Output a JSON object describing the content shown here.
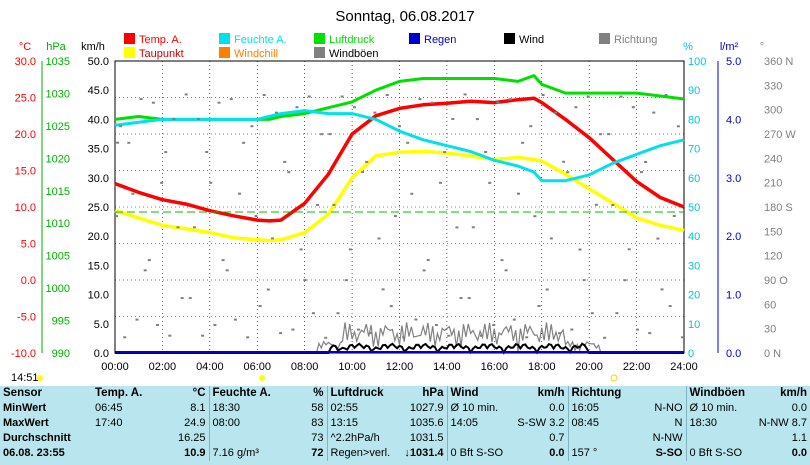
{
  "title": "Sonntag, 06.08.2017",
  "axis_units": {
    "temp": "°C",
    "pressure": "hPa",
    "wind": "km/h",
    "humidity": "%",
    "rain": "l/m²"
  },
  "legend": [
    {
      "label": "Temp. A.",
      "color": "#ff0000"
    },
    {
      "label": "Feuchte A.",
      "color": "#00e0ee"
    },
    {
      "label": "Luftdruck",
      "color": "#00e000"
    },
    {
      "label": "Regen",
      "color": "#0000cc"
    },
    {
      "label": "Wind",
      "color": "#000000"
    },
    {
      "label": "Richtung",
      "color": "#808080"
    },
    {
      "label": "Taupunkt",
      "color": "#ffff00"
    },
    {
      "label": "Windchill",
      "color": "#ff8000"
    },
    {
      "label": "Windböen",
      "color": "#808080"
    }
  ],
  "clock": "14:51",
  "chart_data": {
    "type": "line",
    "title": "Sonntag, 06.08.2017",
    "x_ticks": [
      "00:00",
      "02:00",
      "04:00",
      "06:00",
      "08:00",
      "10:00",
      "12:00",
      "14:00",
      "16:00",
      "18:00",
      "20:00",
      "22:00",
      "24:00"
    ],
    "x": [
      0,
      1,
      2,
      3,
      4,
      5,
      6,
      6.5,
      7,
      8,
      9,
      10,
      11,
      12,
      13,
      14,
      15,
      16,
      17,
      17.67,
      18,
      19,
      20,
      21,
      22,
      23,
      24
    ],
    "temp_ticks": [
      "30.0",
      "25.0",
      "20.0",
      "15.0",
      "10.0",
      "5.0",
      "0.0",
      "-5.0",
      "-10.0"
    ],
    "pressure_ticks": [
      "1035",
      "1030",
      "1025",
      "1020",
      "1015",
      "1010",
      "1005",
      "1000",
      "995",
      "990"
    ],
    "wind_ticks": [
      "50.0",
      "45.0",
      "40.0",
      "35.0",
      "30.0",
      "25.0",
      "20.0",
      "15.0",
      "10.0",
      "5.0",
      "0.0"
    ],
    "humidity_ticks": [
      "100",
      "90",
      "80",
      "70",
      "60",
      "50",
      "40",
      "30",
      "20",
      "10",
      "0"
    ],
    "rain_ticks": [
      "5.0",
      "4.0",
      "3.0",
      "2.0",
      "1.0",
      "0.0"
    ],
    "direction_ticks": [
      "360 N",
      "330",
      "300",
      "270 W",
      "240",
      "210",
      "180 S",
      "150",
      "120",
      "90 O",
      "60",
      "30",
      "0 N"
    ],
    "ylim_temp": [
      -10,
      30
    ],
    "series": [
      {
        "name": "Temp. A.",
        "color": "#ff0000",
        "values": [
          13.2,
          12.0,
          11.0,
          10.4,
          9.5,
          8.8,
          8.2,
          8.1,
          8.2,
          10.5,
          14.5,
          20.0,
          22.5,
          23.5,
          24.0,
          24.2,
          24.5,
          24.3,
          24.7,
          24.9,
          24.3,
          22.0,
          19.5,
          16.5,
          13.5,
          11.3,
          10.0
        ]
      },
      {
        "name": "Taupunkt",
        "color": "#ffff00",
        "values": [
          9.5,
          8.5,
          7.5,
          7.0,
          6.5,
          5.8,
          5.5,
          5.4,
          5.5,
          6.5,
          9.0,
          14.0,
          17.0,
          17.5,
          17.6,
          17.4,
          17.0,
          16.5,
          16.8,
          16.5,
          16.3,
          14.5,
          12.5,
          10.5,
          8.5,
          7.5,
          6.8
        ]
      }
    ]
  },
  "stats": {
    "headers": [
      {
        "name": "Sensor",
        "unit": ""
      },
      {
        "name": "Temp. A.",
        "unit": "°C"
      },
      {
        "name": "Feuchte A.",
        "unit": "%"
      },
      {
        "name": "Luftdruck",
        "unit": "hPa"
      },
      {
        "name": "Wind",
        "unit": "km/h"
      },
      {
        "name": "Richtung",
        "unit": ""
      },
      {
        "name": "Windböen",
        "unit": "km/h"
      }
    ],
    "rows": [
      {
        "label": "MinWert",
        "cells": [
          "06:45",
          "8.1",
          "18:30",
          "58",
          "02:55",
          "1027.9",
          "Ø 10 min.",
          "0.0",
          "16:05",
          "N-NO",
          "Ø 10 min.",
          "0.0"
        ]
      },
      {
        "label": "MaxWert",
        "cells": [
          "17:40",
          "24.9",
          "08:00",
          "83",
          "13:15",
          "1035.6",
          "14:05",
          "S-SW 3.2",
          "08:45",
          "N",
          "18:30",
          "N-NW 8.7"
        ]
      },
      {
        "label": "Durchschnitt",
        "cells": [
          "",
          "16.25",
          "",
          "73",
          "^2.2hPa/h",
          "1031.5",
          "",
          "0.7",
          "",
          "N-NW",
          "",
          "1.1"
        ]
      },
      {
        "label": "06.08. 23:55",
        "cells": [
          "",
          "10.9",
          "7.16 g/m³",
          "72",
          "Regen>verl.",
          "↓1031.4",
          "0 Bft S-SO",
          "0.0",
          "157 °",
          "S-SO",
          "0 Bft S-SO",
          "0.0"
        ]
      }
    ]
  }
}
